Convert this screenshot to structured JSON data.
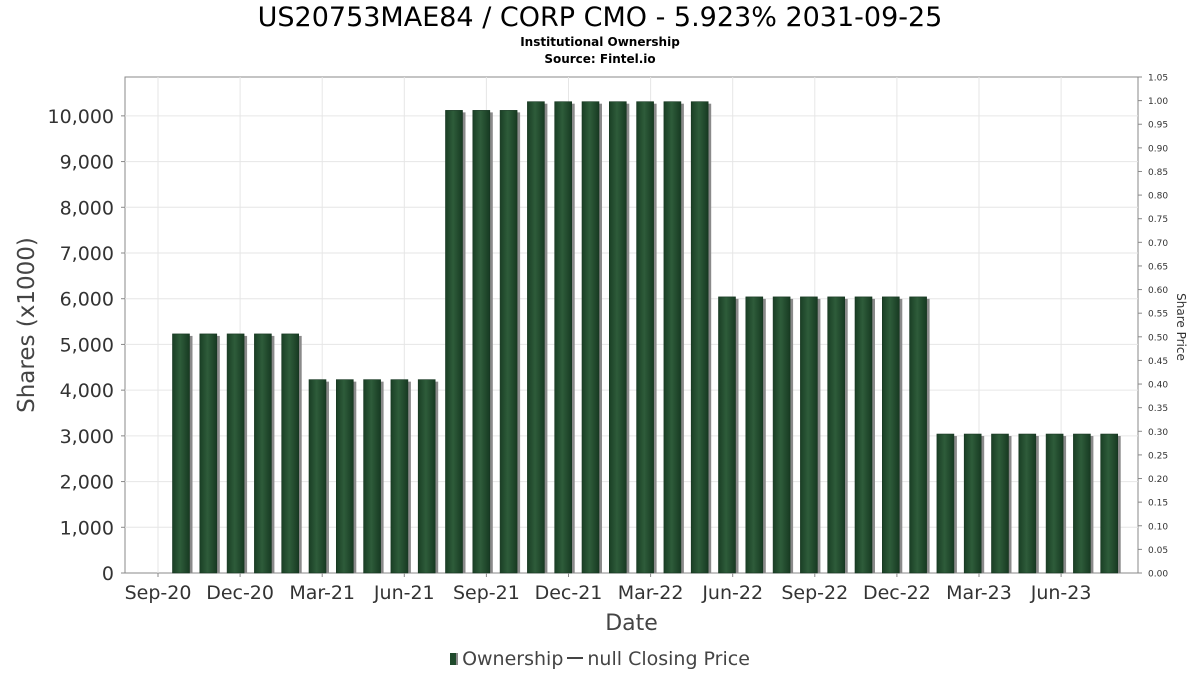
{
  "chart_data": {
    "type": "bar",
    "title": "US20753MAE84 / CORP CMO - 5.923% 2031-09-25",
    "subtitle_1": "Institutional Ownership",
    "subtitle_2": "Source: Fintel.io",
    "xlabel": "Date",
    "ylabel": "Shares (x1000)",
    "y2label": "Share Price",
    "ylim": [
      0,
      10850
    ],
    "y2lim": [
      0,
      1.05
    ],
    "yticks": [
      "0",
      "1,000",
      "2,000",
      "3,000",
      "4,000",
      "5,000",
      "6,000",
      "7,000",
      "8,000",
      "9,000",
      "10,000"
    ],
    "y2ticks": [
      "0.00",
      "0.05",
      "0.10",
      "0.15",
      "0.20",
      "0.25",
      "0.30",
      "0.35",
      "0.40",
      "0.45",
      "0.50",
      "0.55",
      "0.60",
      "0.65",
      "0.70",
      "0.75",
      "0.80",
      "0.85",
      "0.90",
      "0.95",
      "1.00",
      "1.05"
    ],
    "xticks": [
      "Sep-20",
      "Dec-20",
      "Mar-21",
      "Jun-21",
      "Sep-21",
      "Dec-21",
      "Mar-22",
      "Jun-22",
      "Sep-22",
      "Dec-22",
      "Mar-23",
      "Jun-23"
    ],
    "series": [
      {
        "name": "Ownership",
        "values": [
          5230,
          5230,
          5230,
          5230,
          5230,
          4230,
          4230,
          4230,
          4230,
          4230,
          10120,
          10120,
          10120,
          10310,
          10310,
          10310,
          10310,
          10310,
          10310,
          10310,
          6040,
          6040,
          6040,
          6040,
          6040,
          6040,
          6040,
          6040,
          3040,
          3040,
          3040,
          3040,
          3040,
          3040,
          3040
        ]
      }
    ],
    "legend": {
      "ownership_label": "Ownership",
      "price_label": "null Closing Price",
      "placement": "bottom"
    },
    "grid": true,
    "colors": {
      "bar": "#1f4a2c",
      "bar_highlight": "#2e5c3a",
      "bar_shadow": "#8a8a8a",
      "grid": "#e6e6e6",
      "axis": "#888888"
    }
  }
}
